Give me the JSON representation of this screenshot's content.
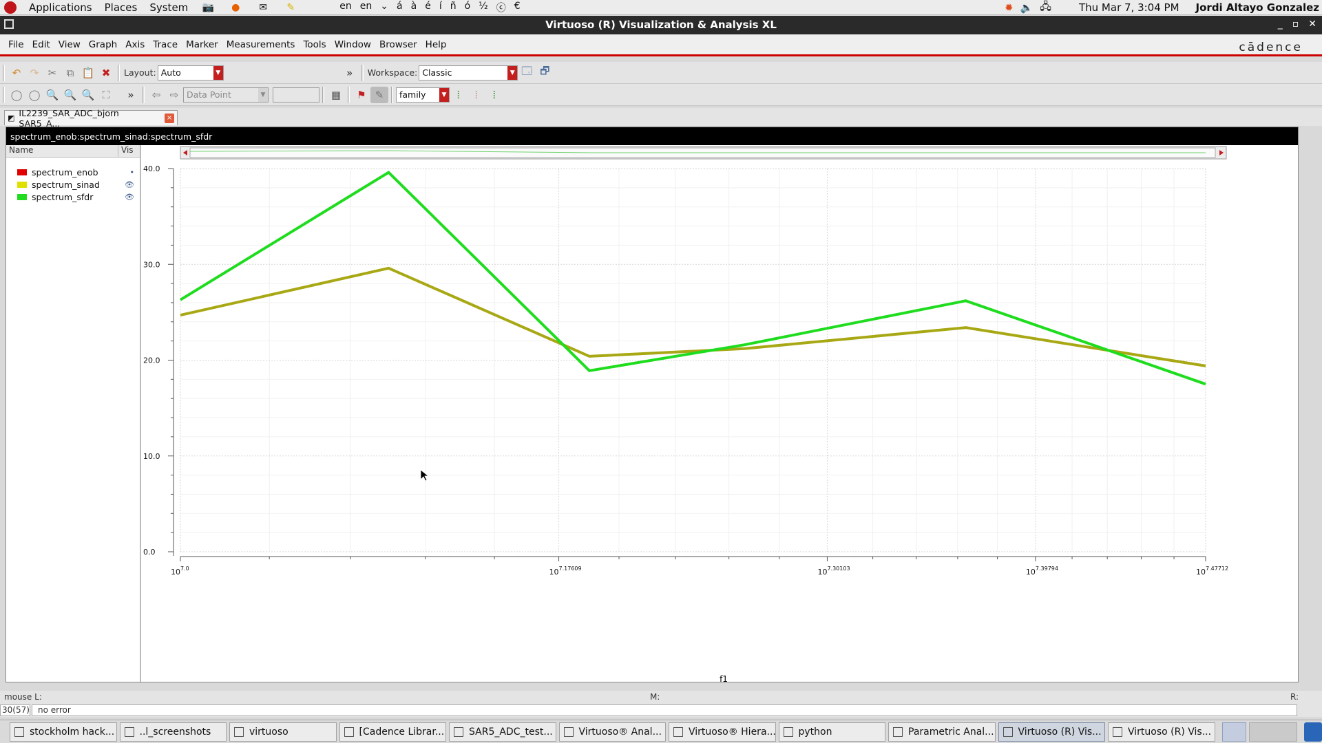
{
  "topbar": {
    "menus": [
      "Applications",
      "Places",
      "System"
    ],
    "keyboard_chars": [
      "en",
      "en",
      "⌄",
      "á",
      "à",
      "é",
      "í",
      "ñ",
      "ó",
      "½",
      "ⓒ",
      "€"
    ],
    "clock": "Thu Mar  7,  3:04 PM",
    "user": "Jordi Altayo Gonzalez"
  },
  "window": {
    "title": "Virtuoso (R) Visualization & Analysis XL",
    "brand": "cādence"
  },
  "menubar": [
    "File",
    "Edit",
    "View",
    "Graph",
    "Axis",
    "Trace",
    "Marker",
    "Measurements",
    "Tools",
    "Window",
    "Browser",
    "Help"
  ],
  "toolbar1": {
    "layout_label": "Layout:",
    "layout_value": "Auto",
    "workspace_label": "Workspace:",
    "workspace_value": "Classic"
  },
  "toolbar2": {
    "marker_mode": "Data Point",
    "family_value": "family"
  },
  "tab": {
    "label": "IL2239_SAR_ADC_bjorn SAR5_A..."
  },
  "graph": {
    "title": "spectrum_enob:spectrum_sinad:spectrum_sfdr",
    "legend_header": {
      "name": "Name",
      "vis": "Vis"
    },
    "legend": [
      {
        "name": "spectrum_enob",
        "color": "#e00000",
        "vis": "•"
      },
      {
        "name": "spectrum_sinad",
        "color": "#e0e000",
        "vis": "👁"
      },
      {
        "name": "spectrum_sfdr",
        "color": "#1fdc1f",
        "vis": "👁"
      }
    ]
  },
  "chart_data": {
    "type": "line",
    "xscale": "log",
    "xlabel": "f1",
    "ylabel": "",
    "xlim": [
      10000000,
      30000000
    ],
    "ylim": [
      0,
      40
    ],
    "yticks": [
      "0.0",
      "10.0",
      "20.0",
      "30.0",
      "40.0"
    ],
    "xticks": [
      {
        "base": "10",
        "exp": "7.0",
        "value": 10000000
      },
      {
        "base": "10",
        "exp": "7.17609",
        "value": 15000000
      },
      {
        "base": "10",
        "exp": "7.30103",
        "value": 20000000
      },
      {
        "base": "10",
        "exp": "7.39794",
        "value": 25000000
      },
      {
        "base": "10",
        "exp": "7.47712",
        "value": 30000000
      }
    ],
    "grid": true,
    "series": [
      {
        "name": "spectrum_sinad",
        "color": "#a8a814",
        "x": [
          10000000,
          12500000,
          15500000,
          18300000,
          23200000,
          30000000
        ],
        "y": [
          24.7,
          29.6,
          20.4,
          21.2,
          23.4,
          19.4
        ]
      },
      {
        "name": "spectrum_sfdr",
        "color": "#1fdc1f",
        "x": [
          10000000,
          12500000,
          15500000,
          18300000,
          23200000,
          30000000
        ],
        "y": [
          26.3,
          39.6,
          18.9,
          21.6,
          26.2,
          17.5
        ]
      }
    ]
  },
  "status": {
    "mouse": "mouse L:",
    "middle": "M:",
    "right": "R:",
    "counter": "30(57)",
    "message": "no error"
  },
  "taskbar": [
    {
      "label": "stockholm hack...",
      "icon": "chrome-icon",
      "active": false
    },
    {
      "label": "..l_screenshots",
      "icon": "folder-icon",
      "active": false
    },
    {
      "label": "virtuoso",
      "icon": "terminal-icon",
      "active": false
    },
    {
      "label": "[Cadence Librar...",
      "icon": "window-icon",
      "active": false
    },
    {
      "label": "SAR5_ADC_test...",
      "icon": "schematic-icon",
      "active": false
    },
    {
      "label": "Virtuoso® Anal...",
      "icon": "window-icon",
      "active": false
    },
    {
      "label": "Virtuoso® Hiera...",
      "icon": "hierarchy-icon",
      "active": false
    },
    {
      "label": "python",
      "icon": "terminal-icon",
      "active": false
    },
    {
      "label": "Parametric Anal...",
      "icon": "window-icon",
      "active": false
    },
    {
      "label": "Virtuoso (R) Vis...",
      "icon": "wave-icon",
      "active": true
    },
    {
      "label": "Virtuoso (R) Vis...",
      "icon": "wave-icon",
      "active": false
    }
  ]
}
